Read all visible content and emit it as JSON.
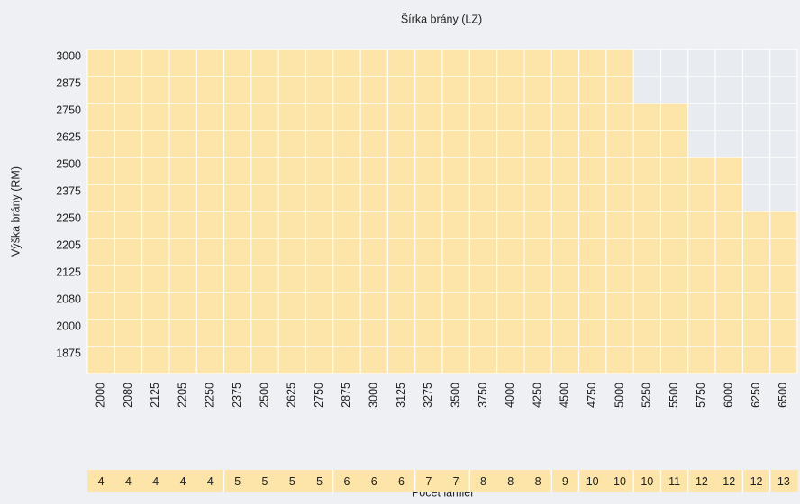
{
  "title": "Šírka brány (LZ)",
  "y_label": "Výška brány (RM)",
  "x_label": "Počet lamiel",
  "heights": [
    3000,
    2875,
    2750,
    2625,
    2500,
    2375,
    2250,
    2205,
    2125,
    2080,
    2000,
    1875
  ],
  "widths": [
    2000,
    2080,
    2125,
    2205,
    2250,
    2375,
    2500,
    2625,
    2750,
    2875,
    3000,
    3125,
    3275,
    3500,
    3750,
    4000,
    4250,
    4500,
    4750,
    5000,
    5250,
    5500,
    5750,
    6000,
    6250,
    6500
  ],
  "max_height": [
    3000,
    3000,
    3000,
    3000,
    3000,
    3000,
    3000,
    3000,
    3000,
    3000,
    3000,
    3000,
    3000,
    3000,
    3000,
    3000,
    3000,
    3000,
    3000,
    3000,
    2750,
    2750,
    2500,
    2500,
    2250,
    2250
  ],
  "lamellas": [
    4,
    4,
    4,
    4,
    4,
    5,
    5,
    5,
    5,
    6,
    6,
    6,
    7,
    7,
    8,
    8,
    8,
    9,
    10,
    10,
    10,
    11,
    12,
    12,
    12,
    13
  ],
  "fill_color": "#fde4a9",
  "empty_color": "#e8ebef"
}
